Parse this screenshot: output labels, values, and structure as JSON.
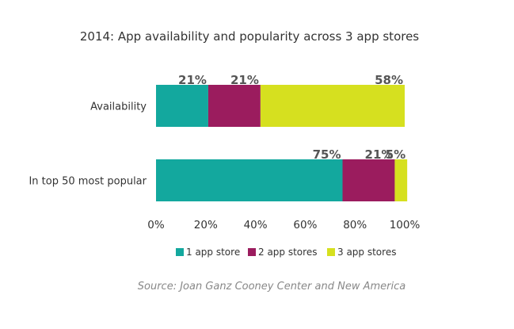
{
  "chart_data": {
    "type": "bar",
    "orientation": "horizontal",
    "stacked": true,
    "title": "2014: App availability and popularity across 3 app stores",
    "categories": [
      "Availability",
      "In top 50 most popular"
    ],
    "series": [
      {
        "name": "1 app store",
        "color": "#13a89e",
        "values": [
          21,
          75
        ],
        "labels": [
          "21%",
          "75%"
        ]
      },
      {
        "name": "2 app stores",
        "color": "#9b1c5e",
        "values": [
          21,
          21
        ],
        "labels": [
          "21%",
          "21%"
        ]
      },
      {
        "name": "3 app stores",
        "color": "#d6e01f",
        "values": [
          58,
          5
        ],
        "labels": [
          "58%",
          "5%"
        ]
      }
    ],
    "xlim": [
      0,
      100
    ],
    "xticks": [
      0,
      20,
      40,
      60,
      80,
      100
    ],
    "xtick_labels": [
      "0%",
      "20%",
      "40%",
      "60%",
      "80%",
      "100%"
    ],
    "grid": false,
    "legend": "bottom",
    "source": "Source: Joan Ganz Cooney Center and New America"
  }
}
